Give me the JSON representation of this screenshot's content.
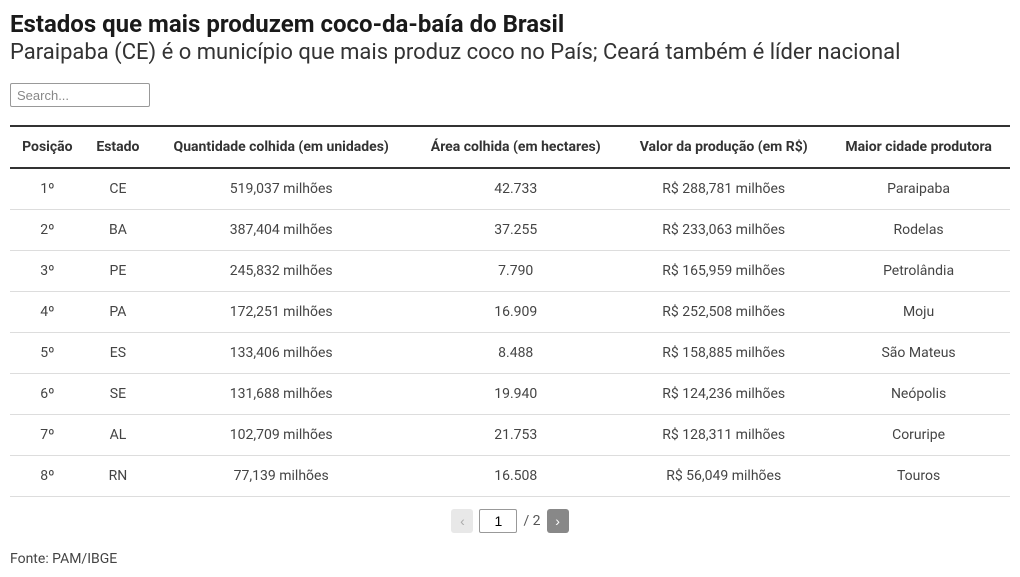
{
  "title": "Estados que mais produzem coco-da-baía do Brasil",
  "subtitle": "Paraipaba (CE) é o município que mais produz coco no País; Ceará também é líder nacional",
  "search": {
    "placeholder": "Search..."
  },
  "table": {
    "columns": [
      "Posição",
      "Estado",
      "Quantidade colhida (em unidades)",
      "Área colhida (em hectares)",
      "Valor da produção (em R$)",
      "Maior cidade produtora"
    ],
    "rows": [
      {
        "pos": "1º",
        "estado": "CE",
        "quantidade": "519,037 milhões",
        "area": "42.733",
        "valor": "R$ 288,781 milhões",
        "cidade": "Paraipaba"
      },
      {
        "pos": "2º",
        "estado": "BA",
        "quantidade": "387,404 milhões",
        "area": "37.255",
        "valor": "R$ 233,063 milhões",
        "cidade": "Rodelas"
      },
      {
        "pos": "3º",
        "estado": "PE",
        "quantidade": "245,832 milhões",
        "area": "7.790",
        "valor": "R$ 165,959 milhões",
        "cidade": "Petrolândia"
      },
      {
        "pos": "4º",
        "estado": "PA",
        "quantidade": "172,251 milhões",
        "area": "16.909",
        "valor": "R$ 252,508 milhões",
        "cidade": "Moju"
      },
      {
        "pos": "5º",
        "estado": "ES",
        "quantidade": "133,406 milhões",
        "area": "8.488",
        "valor": "R$ 158,885 milhões",
        "cidade": "São Mateus"
      },
      {
        "pos": "6º",
        "estado": "SE",
        "quantidade": "131,688 milhões",
        "area": "19.940",
        "valor": "R$ 124,236 milhões",
        "cidade": "Neópolis"
      },
      {
        "pos": "7º",
        "estado": "AL",
        "quantidade": "102,709 milhões",
        "area": "21.753",
        "valor": "R$ 128,311 milhões",
        "cidade": "Coruripe"
      },
      {
        "pos": "8º",
        "estado": "RN",
        "quantidade": "77,139 milhões",
        "area": "16.508",
        "valor": "R$ 56,049 milhões",
        "cidade": "Touros"
      }
    ]
  },
  "pagination": {
    "prev_label": "‹",
    "next_label": "›",
    "current_page": "1",
    "total_label": "/ 2"
  },
  "source": "Fonte: PAM/IBGE",
  "colors": {
    "title_color": "#1a1a1a",
    "text_color": "#333333",
    "border_color": "#dddddd",
    "header_border_color": "#333333",
    "next_btn_bg": "#888888",
    "prev_btn_bg": "#e8e8e8"
  }
}
